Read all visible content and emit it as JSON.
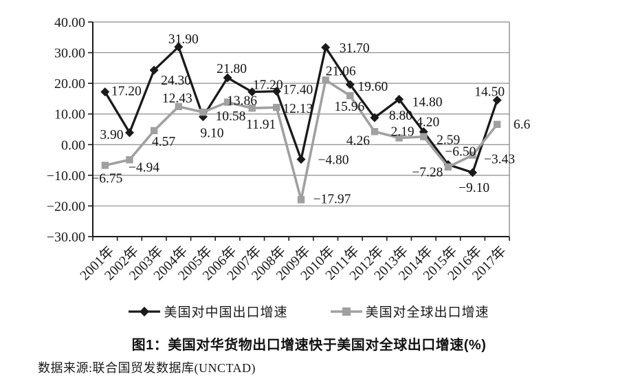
{
  "chart_data": {
    "type": "line",
    "title": "图1：美国对华货物出口增速快于美国对全球出口增速(%)",
    "source": "数据来源:联合国贸发数据库(UNCTAD)",
    "categories": [
      "2001年",
      "2002年",
      "2003年",
      "2004年",
      "2005年",
      "2006年",
      "2007年",
      "2008年",
      "2009年",
      "2010年",
      "2011年",
      "2012年",
      "2013年",
      "2014年",
      "2015年",
      "2016年",
      "2017年"
    ],
    "y_axis": {
      "min": -30,
      "max": 40,
      "step": 10,
      "tick_labels": [
        "40.00",
        "30.00",
        "20.00",
        "10.00",
        "0.00",
        "−10.00",
        "−20.00",
        "−30.00"
      ]
    },
    "grid": true,
    "legend_position": "bottom",
    "colors": {
      "series_china": "#1a1a1a",
      "series_global": "#a0a0a0",
      "gridline": "#8c8c8c",
      "axis": "#1a1a1a"
    },
    "series": [
      {
        "name": "美国对中国出口增速",
        "color": "#1a1a1a",
        "marker": "diamond",
        "values": [
          17.2,
          3.9,
          24.3,
          31.9,
          9.1,
          21.8,
          17.2,
          17.4,
          -4.8,
          31.7,
          19.6,
          8.8,
          14.8,
          4.2,
          -6.5,
          -9.1,
          14.5
        ],
        "labels": [
          "17.20",
          "3.90",
          "24.30",
          "31.90",
          "9.10",
          "21.80",
          "17.20",
          "17.40",
          "−4.80",
          "31.70",
          "19.60",
          "8.80",
          "14.80",
          "4.20",
          "−6.50",
          "−9.10",
          "14.50"
        ],
        "label_offsets": [
          [
            31,
            -2
          ],
          [
            -26,
            2
          ],
          [
            32,
            14
          ],
          [
            7,
            -12
          ],
          [
            13,
            23
          ],
          [
            6,
            -14
          ],
          [
            23,
            -11
          ],
          [
            31,
            -3
          ],
          [
            47,
            0
          ],
          [
            42,
            0
          ],
          [
            33,
            2
          ],
          [
            38,
            -4
          ],
          [
            41,
            3
          ],
          [
            6,
            -15
          ],
          [
            18,
            -20
          ],
          [
            2,
            21
          ],
          [
            -11,
            -13
          ]
        ]
      },
      {
        "name": "美国对全球出口增速",
        "color": "#a0a0a0",
        "marker": "square",
        "values": [
          -6.75,
          -4.94,
          4.57,
          12.43,
          10.58,
          13.86,
          11.91,
          12.13,
          -17.97,
          21.06,
          15.96,
          4.26,
          2.19,
          2.59,
          -7.28,
          -3.43,
          6.6
        ],
        "labels": [
          "−6.75",
          "−4.94",
          "4.57",
          "12.43",
          "10.58",
          "13.86",
          "11.91",
          "12.13",
          "−17.97",
          "21.06",
          "15.96",
          "4.26",
          "2.19",
          "2.59",
          "−7.28",
          "−3.43",
          "6.6"
        ],
        "label_offsets": [
          [
            3,
            18
          ],
          [
            21,
            10
          ],
          [
            14,
            15
          ],
          [
            -2,
            -13
          ],
          [
            40,
            5
          ],
          [
            21,
            -3
          ],
          [
            13,
            23
          ],
          [
            31,
            1
          ],
          [
            45,
            -2
          ],
          [
            22,
            -14
          ],
          [
            -1,
            15
          ],
          [
            -24,
            12
          ],
          [
            5,
            -10
          ],
          [
            36,
            4
          ],
          [
            -30,
            7
          ],
          [
            39,
            5
          ],
          [
            36,
            -1
          ]
        ]
      }
    ]
  }
}
